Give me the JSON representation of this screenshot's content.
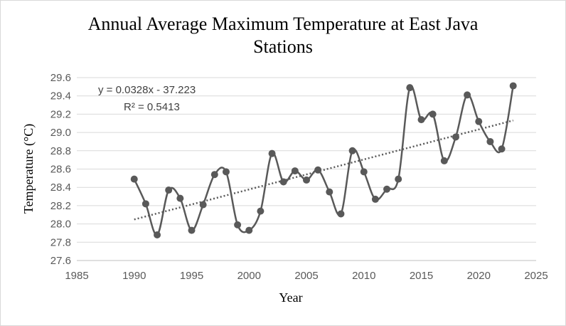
{
  "chart_data": {
    "type": "line",
    "title_line1": "Annual Average Maximum Temperature at East Java",
    "title_line2": "Stations",
    "xlabel": "Year",
    "ylabel": "Temperature (°C)",
    "xlim": [
      1985,
      2025
    ],
    "ylim": [
      27.6,
      29.6
    ],
    "xticks": [
      1985,
      1990,
      1995,
      2000,
      2005,
      2010,
      2015,
      2020,
      2025
    ],
    "yticks": [
      27.6,
      27.8,
      28.0,
      28.2,
      28.4,
      28.6,
      28.8,
      29.0,
      29.2,
      29.4,
      29.6
    ],
    "grid": "horizontal",
    "series": [
      {
        "x": [
          1990,
          1991,
          1992,
          1993,
          1994,
          1995,
          1996,
          1997,
          1998,
          1999,
          2000,
          2001,
          2002,
          2003,
          2004,
          2005,
          2006,
          2007,
          2008,
          2009,
          2010,
          2011,
          2012,
          2013,
          2014,
          2015,
          2016,
          2017,
          2018,
          2019,
          2020,
          2021,
          2022,
          2023
        ],
        "values": [
          28.49,
          28.22,
          27.88,
          28.37,
          28.28,
          27.93,
          28.21,
          28.54,
          28.57,
          27.99,
          27.93,
          28.14,
          28.77,
          28.46,
          28.58,
          28.48,
          28.59,
          28.35,
          28.11,
          28.8,
          28.57,
          28.27,
          28.38,
          28.49,
          29.49,
          29.14,
          29.2,
          28.69,
          28.95,
          29.41,
          29.12,
          28.9,
          28.82,
          29.51
        ],
        "color": "#595959"
      }
    ],
    "trendline": {
      "type": "linear",
      "slope": 0.0328,
      "intercept": -37.223,
      "equation": "y = 0.0328x - 37.223",
      "r_squared": "R² = 0.5413",
      "color": "#595959"
    }
  }
}
